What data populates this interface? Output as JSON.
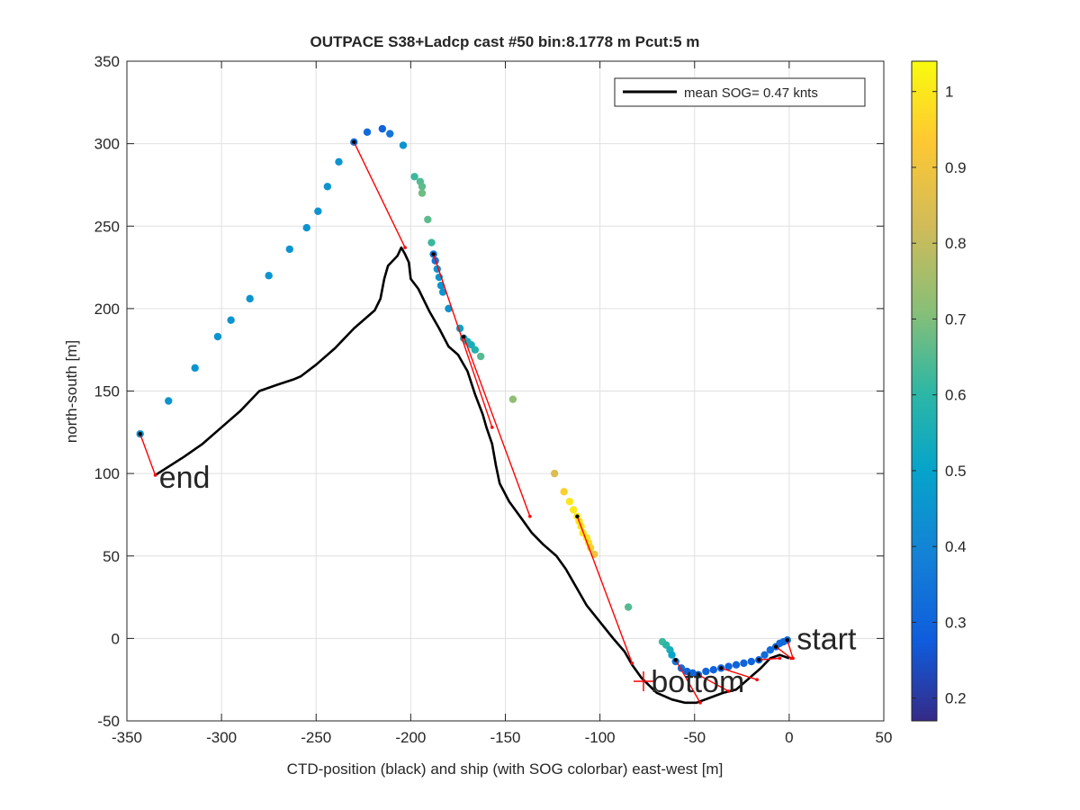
{
  "chart_data": {
    "type": "scatter",
    "title": "OUTPACE S38+Ladcp cast #50 bin:8.1778 m  Pcut:5 m",
    "xlabel": "CTD-position (black) and ship (with SOG colorbar) east-west [m]",
    "ylabel": "north-south [m]",
    "xlim": [
      -350,
      50
    ],
    "ylim": [
      -50,
      350
    ],
    "xticks": [
      -350,
      -300,
      -250,
      -200,
      -150,
      -100,
      -50,
      0,
      50
    ],
    "yticks": [
      -50,
      0,
      50,
      100,
      150,
      200,
      250,
      300,
      350
    ],
    "xtick_labels": [
      "-350",
      "-300",
      "-250",
      "-200",
      "-150",
      "-100",
      "-50",
      "0",
      "50"
    ],
    "ytick_labels": [
      "-50",
      "0",
      "50",
      "100",
      "150",
      "200",
      "250",
      "300",
      "350"
    ],
    "grid": true,
    "legend": {
      "position": "top-right",
      "entry": "mean SOG=  0.47 knts"
    },
    "colorbar": {
      "range": [
        0.17,
        1.04
      ],
      "ticks": [
        0.2,
        0.3,
        0.4,
        0.5,
        0.6,
        0.7,
        0.8,
        0.9,
        1
      ],
      "tick_labels": [
        "0.2",
        "0.3",
        "0.4",
        "0.5",
        "0.6",
        "0.7",
        "0.8",
        "0.9",
        "1"
      ],
      "colormap": "parula"
    },
    "annotations": [
      {
        "text": "start",
        "x": 4,
        "y": 0
      },
      {
        "text": "bottom",
        "x": -73,
        "y": -26
      },
      {
        "text": "end",
        "x": -333,
        "y": 98
      }
    ],
    "bottom_marker": {
      "x": -77,
      "y": -26,
      "color": "#ff0000"
    },
    "ctd_track": {
      "color": "#000000",
      "points": [
        [
          0,
          -12
        ],
        [
          -5,
          -10
        ],
        [
          -10,
          -12
        ],
        [
          -15,
          -18
        ],
        [
          -22,
          -25
        ],
        [
          -28,
          -31
        ],
        [
          -35,
          -33
        ],
        [
          -42,
          -36
        ],
        [
          -49,
          -39
        ],
        [
          -55,
          -39
        ],
        [
          -62,
          -37
        ],
        [
          -70,
          -33
        ],
        [
          -78,
          -24
        ],
        [
          -83,
          -16
        ],
        [
          -87,
          -8
        ],
        [
          -93,
          0
        ],
        [
          -100,
          10
        ],
        [
          -107,
          20
        ],
        [
          -112,
          30
        ],
        [
          -118,
          42
        ],
        [
          -123,
          50
        ],
        [
          -130,
          57
        ],
        [
          -136,
          64
        ],
        [
          -141,
          72
        ],
        [
          -148,
          83
        ],
        [
          -153,
          94
        ],
        [
          -155,
          105
        ],
        [
          -157,
          118
        ],
        [
          -160,
          128
        ],
        [
          -162,
          136
        ],
        [
          -166,
          148
        ],
        [
          -170,
          162
        ],
        [
          -175,
          172
        ],
        [
          -180,
          177
        ],
        [
          -185,
          188
        ],
        [
          -190,
          198
        ],
        [
          -196,
          212
        ],
        [
          -200,
          218
        ],
        [
          -201,
          228
        ],
        [
          -203,
          233
        ],
        [
          -205,
          237
        ],
        [
          -207,
          232
        ],
        [
          -212,
          226
        ],
        [
          -214,
          218
        ],
        [
          -215,
          212
        ],
        [
          -216,
          206
        ],
        [
          -219,
          199
        ],
        [
          -230,
          188
        ],
        [
          -240,
          176
        ],
        [
          -250,
          166
        ],
        [
          -258,
          159
        ],
        [
          -262,
          157
        ],
        [
          -270,
          154
        ],
        [
          -280,
          150
        ],
        [
          -290,
          138
        ],
        [
          -300,
          128
        ],
        [
          -310,
          118
        ],
        [
          -320,
          110
        ],
        [
          -335,
          99
        ]
      ]
    },
    "ship_points": {
      "value_label": "SOG",
      "points": [
        [
          -343,
          124,
          0.45
        ],
        [
          -328,
          144,
          0.45
        ],
        [
          -314,
          164,
          0.45
        ],
        [
          -302,
          183,
          0.45
        ],
        [
          -295,
          193,
          0.45
        ],
        [
          -285,
          206,
          0.45
        ],
        [
          -275,
          220,
          0.45
        ],
        [
          -264,
          236,
          0.45
        ],
        [
          -255,
          249,
          0.45
        ],
        [
          -249,
          259,
          0.45
        ],
        [
          -244,
          274,
          0.45
        ],
        [
          -238,
          289,
          0.45
        ],
        [
          -230,
          301,
          0.32
        ],
        [
          -223,
          307,
          0.32
        ],
        [
          -215,
          309,
          0.3
        ],
        [
          -211,
          306,
          0.35
        ],
        [
          -204,
          299,
          0.45
        ],
        [
          -198,
          280,
          0.62
        ],
        [
          -195,
          277,
          0.65
        ],
        [
          -194,
          274,
          0.66
        ],
        [
          -194,
          270,
          0.68
        ],
        [
          -191,
          254,
          0.66
        ],
        [
          -189,
          240,
          0.62
        ],
        [
          -188,
          233,
          0.35
        ],
        [
          -187,
          229,
          0.35
        ],
        [
          -186,
          224,
          0.45
        ],
        [
          -185,
          219,
          0.45
        ],
        [
          -184,
          214,
          0.45
        ],
        [
          -183,
          210,
          0.45
        ],
        [
          -180,
          200,
          0.45
        ],
        [
          -174,
          188,
          0.5
        ],
        [
          -172,
          182,
          0.52
        ],
        [
          -170,
          180,
          0.55
        ],
        [
          -168,
          178,
          0.55
        ],
        [
          -166,
          175,
          0.58
        ],
        [
          -163,
          171,
          0.65
        ],
        [
          -146,
          145,
          0.72
        ],
        [
          -124,
          100,
          0.85
        ],
        [
          -119,
          89,
          0.95
        ],
        [
          -116,
          83,
          1.0
        ],
        [
          -114,
          78,
          1.0
        ],
        [
          -112,
          74,
          1.0
        ],
        [
          -111,
          71,
          1.0
        ],
        [
          -110,
          68,
          1.0
        ],
        [
          -109,
          64,
          1.0
        ],
        [
          -107,
          61,
          1.0
        ],
        [
          -106,
          58,
          0.98
        ],
        [
          -105,
          55,
          0.95
        ],
        [
          -103,
          51,
          0.9
        ],
        [
          -85,
          19,
          0.65
        ],
        [
          -67,
          -2,
          0.62
        ],
        [
          -65,
          -4,
          0.6
        ],
        [
          -63,
          -7,
          0.55
        ],
        [
          -62,
          -10,
          0.5
        ],
        [
          -60,
          -14,
          0.35
        ],
        [
          -57,
          -18,
          0.32
        ],
        [
          -54,
          -20,
          0.3
        ],
        [
          -51,
          -21,
          0.3
        ],
        [
          -48,
          -22,
          0.3
        ],
        [
          -44,
          -20,
          0.3
        ],
        [
          -40,
          -19,
          0.3
        ],
        [
          -36,
          -18,
          0.3
        ],
        [
          -32,
          -17,
          0.3
        ],
        [
          -28,
          -16,
          0.3
        ],
        [
          -24,
          -15,
          0.3
        ],
        [
          -20,
          -14,
          0.3
        ],
        [
          -16,
          -13,
          0.3
        ],
        [
          -13,
          -10,
          0.32
        ],
        [
          -10,
          -7,
          0.32
        ],
        [
          -7,
          -5,
          0.32
        ],
        [
          -5,
          -3,
          0.32
        ],
        [
          -3,
          -2,
          0.32
        ],
        [
          -1,
          -1,
          0.32
        ]
      ]
    },
    "connector_lines": {
      "color": "#ff0000",
      "segments": [
        [
          [
            -343,
            124
          ],
          [
            -335,
            99
          ]
        ],
        [
          [
            -230,
            301
          ],
          [
            -203,
            237
          ]
        ],
        [
          [
            -188,
            233
          ],
          [
            -157,
            128
          ]
        ],
        [
          [
            -172,
            183
          ],
          [
            -137,
            74
          ]
        ],
        [
          [
            -112,
            74
          ],
          [
            -83,
            -15
          ]
        ],
        [
          [
            -60,
            -13
          ],
          [
            -47,
            -39
          ]
        ],
        [
          [
            -48,
            -22
          ],
          [
            -32,
            -32
          ]
        ],
        [
          [
            -36,
            -18
          ],
          [
            -17,
            -25
          ]
        ],
        [
          [
            -16,
            -13
          ],
          [
            -5,
            -12
          ]
        ],
        [
          [
            -7,
            -5
          ],
          [
            1,
            -12
          ]
        ],
        [
          [
            -1,
            -1
          ],
          [
            2,
            -12
          ]
        ]
      ]
    }
  }
}
